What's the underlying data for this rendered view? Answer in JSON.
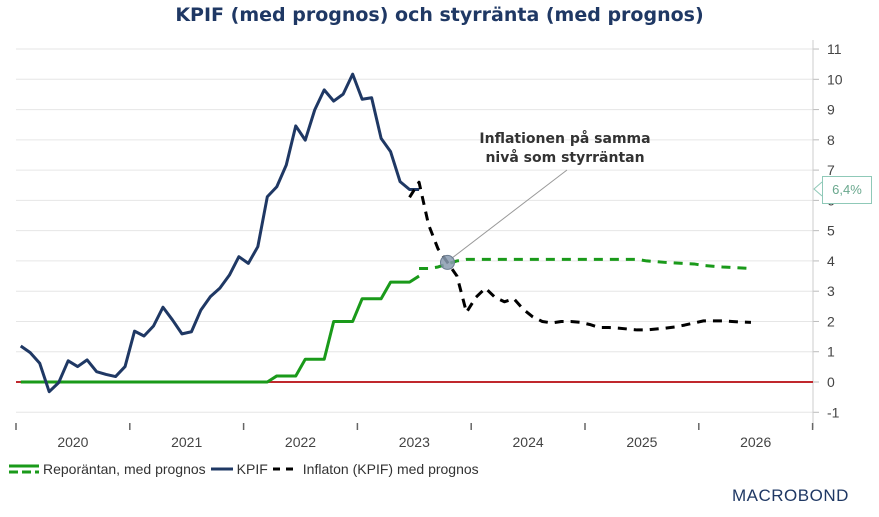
{
  "chart_data": {
    "type": "line",
    "title": "KPIF (med prognos) och styrränta (med prognos)",
    "xlabel": "",
    "ylabel": "",
    "x_ticks": [
      "2020",
      "2021",
      "2022",
      "2023",
      "2024",
      "2025",
      "2026"
    ],
    "xlim": [
      "2020-01",
      "2026-12"
    ],
    "y_ticks": [
      -1,
      0,
      1,
      2,
      3,
      4,
      5,
      6,
      7,
      8,
      9,
      10,
      11
    ],
    "ylim": [
      -1,
      11
    ],
    "y_axis_side": "right",
    "grid": true,
    "legend_position": "bottom-left",
    "series": [
      {
        "name": "Reporäntan, med prognos",
        "part": "actual",
        "color": "#1a9a1a",
        "style": "solid",
        "points": [
          [
            "2020-01",
            0
          ],
          [
            "2022-03",
            0
          ],
          [
            "2022-04",
            0.2
          ],
          [
            "2022-06",
            0.2
          ],
          [
            "2022-07",
            0.75
          ],
          [
            "2022-09",
            0.75
          ],
          [
            "2022-10",
            2.0
          ],
          [
            "2022-12",
            2.0
          ],
          [
            "2023-01",
            2.75
          ],
          [
            "2023-03",
            2.75
          ],
          [
            "2023-04",
            3.3
          ],
          [
            "2023-06",
            3.3
          ],
          [
            "2023-07",
            3.5
          ]
        ]
      },
      {
        "name": "Reporäntan, med prognos",
        "part": "forecast",
        "color": "#1a9a1a",
        "style": "dashed",
        "points": [
          [
            "2023-07",
            3.75
          ],
          [
            "2023-08",
            3.75
          ],
          [
            "2023-09",
            3.8
          ],
          [
            "2023-10",
            3.9
          ],
          [
            "2023-11",
            4.0
          ],
          [
            "2023-12",
            4.05
          ],
          [
            "2025-06",
            4.05
          ],
          [
            "2025-07",
            4.0
          ],
          [
            "2025-09",
            3.95
          ],
          [
            "2025-12",
            3.9
          ],
          [
            "2026-01",
            3.85
          ],
          [
            "2026-03",
            3.8
          ],
          [
            "2026-06",
            3.75
          ]
        ]
      },
      {
        "name": "KPIF",
        "color": "#1f3864",
        "style": "solid",
        "points": [
          [
            "2020-01",
            1.19
          ],
          [
            "2020-02",
            0.97
          ],
          [
            "2020-03",
            0.62
          ],
          [
            "2020-04",
            -0.32
          ],
          [
            "2020-05",
            -0.02
          ],
          [
            "2020-06",
            0.7
          ],
          [
            "2020-07",
            0.51
          ],
          [
            "2020-08",
            0.73
          ],
          [
            "2020-09",
            0.34
          ],
          [
            "2020-10",
            0.25
          ],
          [
            "2020-11",
            0.18
          ],
          [
            "2020-12",
            0.51
          ],
          [
            "2021-01",
            1.68
          ],
          [
            "2021-02",
            1.52
          ],
          [
            "2021-03",
            1.85
          ],
          [
            "2021-04",
            2.47
          ],
          [
            "2021-05",
            2.05
          ],
          [
            "2021-06",
            1.59
          ],
          [
            "2021-07",
            1.66
          ],
          [
            "2021-08",
            2.38
          ],
          [
            "2021-09",
            2.82
          ],
          [
            "2021-10",
            3.1
          ],
          [
            "2021-11",
            3.53
          ],
          [
            "2021-12",
            4.14
          ],
          [
            "2022-01",
            3.92
          ],
          [
            "2022-02",
            4.47
          ],
          [
            "2022-03",
            6.12
          ],
          [
            "2022-04",
            6.45
          ],
          [
            "2022-05",
            7.17
          ],
          [
            "2022-06",
            8.46
          ],
          [
            "2022-07",
            7.99
          ],
          [
            "2022-08",
            8.99
          ],
          [
            "2022-09",
            9.65
          ],
          [
            "2022-10",
            9.28
          ],
          [
            "2022-11",
            9.51
          ],
          [
            "2022-12",
            10.17
          ],
          [
            "2023-01",
            9.34
          ],
          [
            "2023-02",
            9.39
          ],
          [
            "2023-03",
            8.05
          ],
          [
            "2023-04",
            7.61
          ],
          [
            "2023-05",
            6.62
          ],
          [
            "2023-06",
            6.36
          ],
          [
            "2023-07",
            6.36
          ]
        ]
      },
      {
        "name": "Inflaton (KPIF) med prognos",
        "color": "#000000",
        "style": "dashed",
        "points": [
          [
            "2023-06",
            6.1
          ],
          [
            "2023-07",
            6.6
          ],
          [
            "2023-08",
            5.2
          ],
          [
            "2023-09",
            4.4
          ],
          [
            "2023-10",
            3.95
          ],
          [
            "2023-11",
            3.5
          ],
          [
            "2023-12",
            2.3
          ],
          [
            "2024-01",
            2.8
          ],
          [
            "2024-02",
            3.1
          ],
          [
            "2024-03",
            2.8
          ],
          [
            "2024-04",
            2.65
          ],
          [
            "2024-05",
            2.75
          ],
          [
            "2024-06",
            2.4
          ],
          [
            "2024-07",
            2.15
          ],
          [
            "2024-08",
            2.0
          ],
          [
            "2024-09",
            1.95
          ],
          [
            "2024-10",
            2.0
          ],
          [
            "2024-11",
            2.0
          ],
          [
            "2024-12",
            1.97
          ],
          [
            "2025-01",
            1.9
          ],
          [
            "2025-02",
            1.8
          ],
          [
            "2025-03",
            1.8
          ],
          [
            "2025-04",
            1.78
          ],
          [
            "2025-05",
            1.75
          ],
          [
            "2025-06",
            1.72
          ],
          [
            "2025-07",
            1.72
          ],
          [
            "2025-08",
            1.75
          ],
          [
            "2025-09",
            1.78
          ],
          [
            "2025-10",
            1.82
          ],
          [
            "2025-11",
            1.88
          ],
          [
            "2025-12",
            1.95
          ],
          [
            "2026-01",
            2.02
          ],
          [
            "2026-02",
            2.02
          ],
          [
            "2026-03",
            2.02
          ],
          [
            "2026-04",
            2.0
          ],
          [
            "2026-05",
            1.98
          ],
          [
            "2026-06",
            1.97
          ]
        ]
      }
    ],
    "reference_line": {
      "y": 0,
      "color": "#c0282d"
    },
    "annotation": {
      "line1": "Inflationen på samma",
      "line2": "nivå som styrräntan",
      "at": [
        "2023-10",
        3.95
      ]
    },
    "last_value_label": "6,4%"
  },
  "legend": [
    {
      "label": "Reporäntan, med prognos",
      "color": "#1a9a1a"
    },
    {
      "label": "KPIF",
      "color": "#1f3864"
    },
    {
      "label": "Inflaton (KPIF) med prognos",
      "color": "#000000"
    }
  ],
  "logo": "MACROBOND"
}
